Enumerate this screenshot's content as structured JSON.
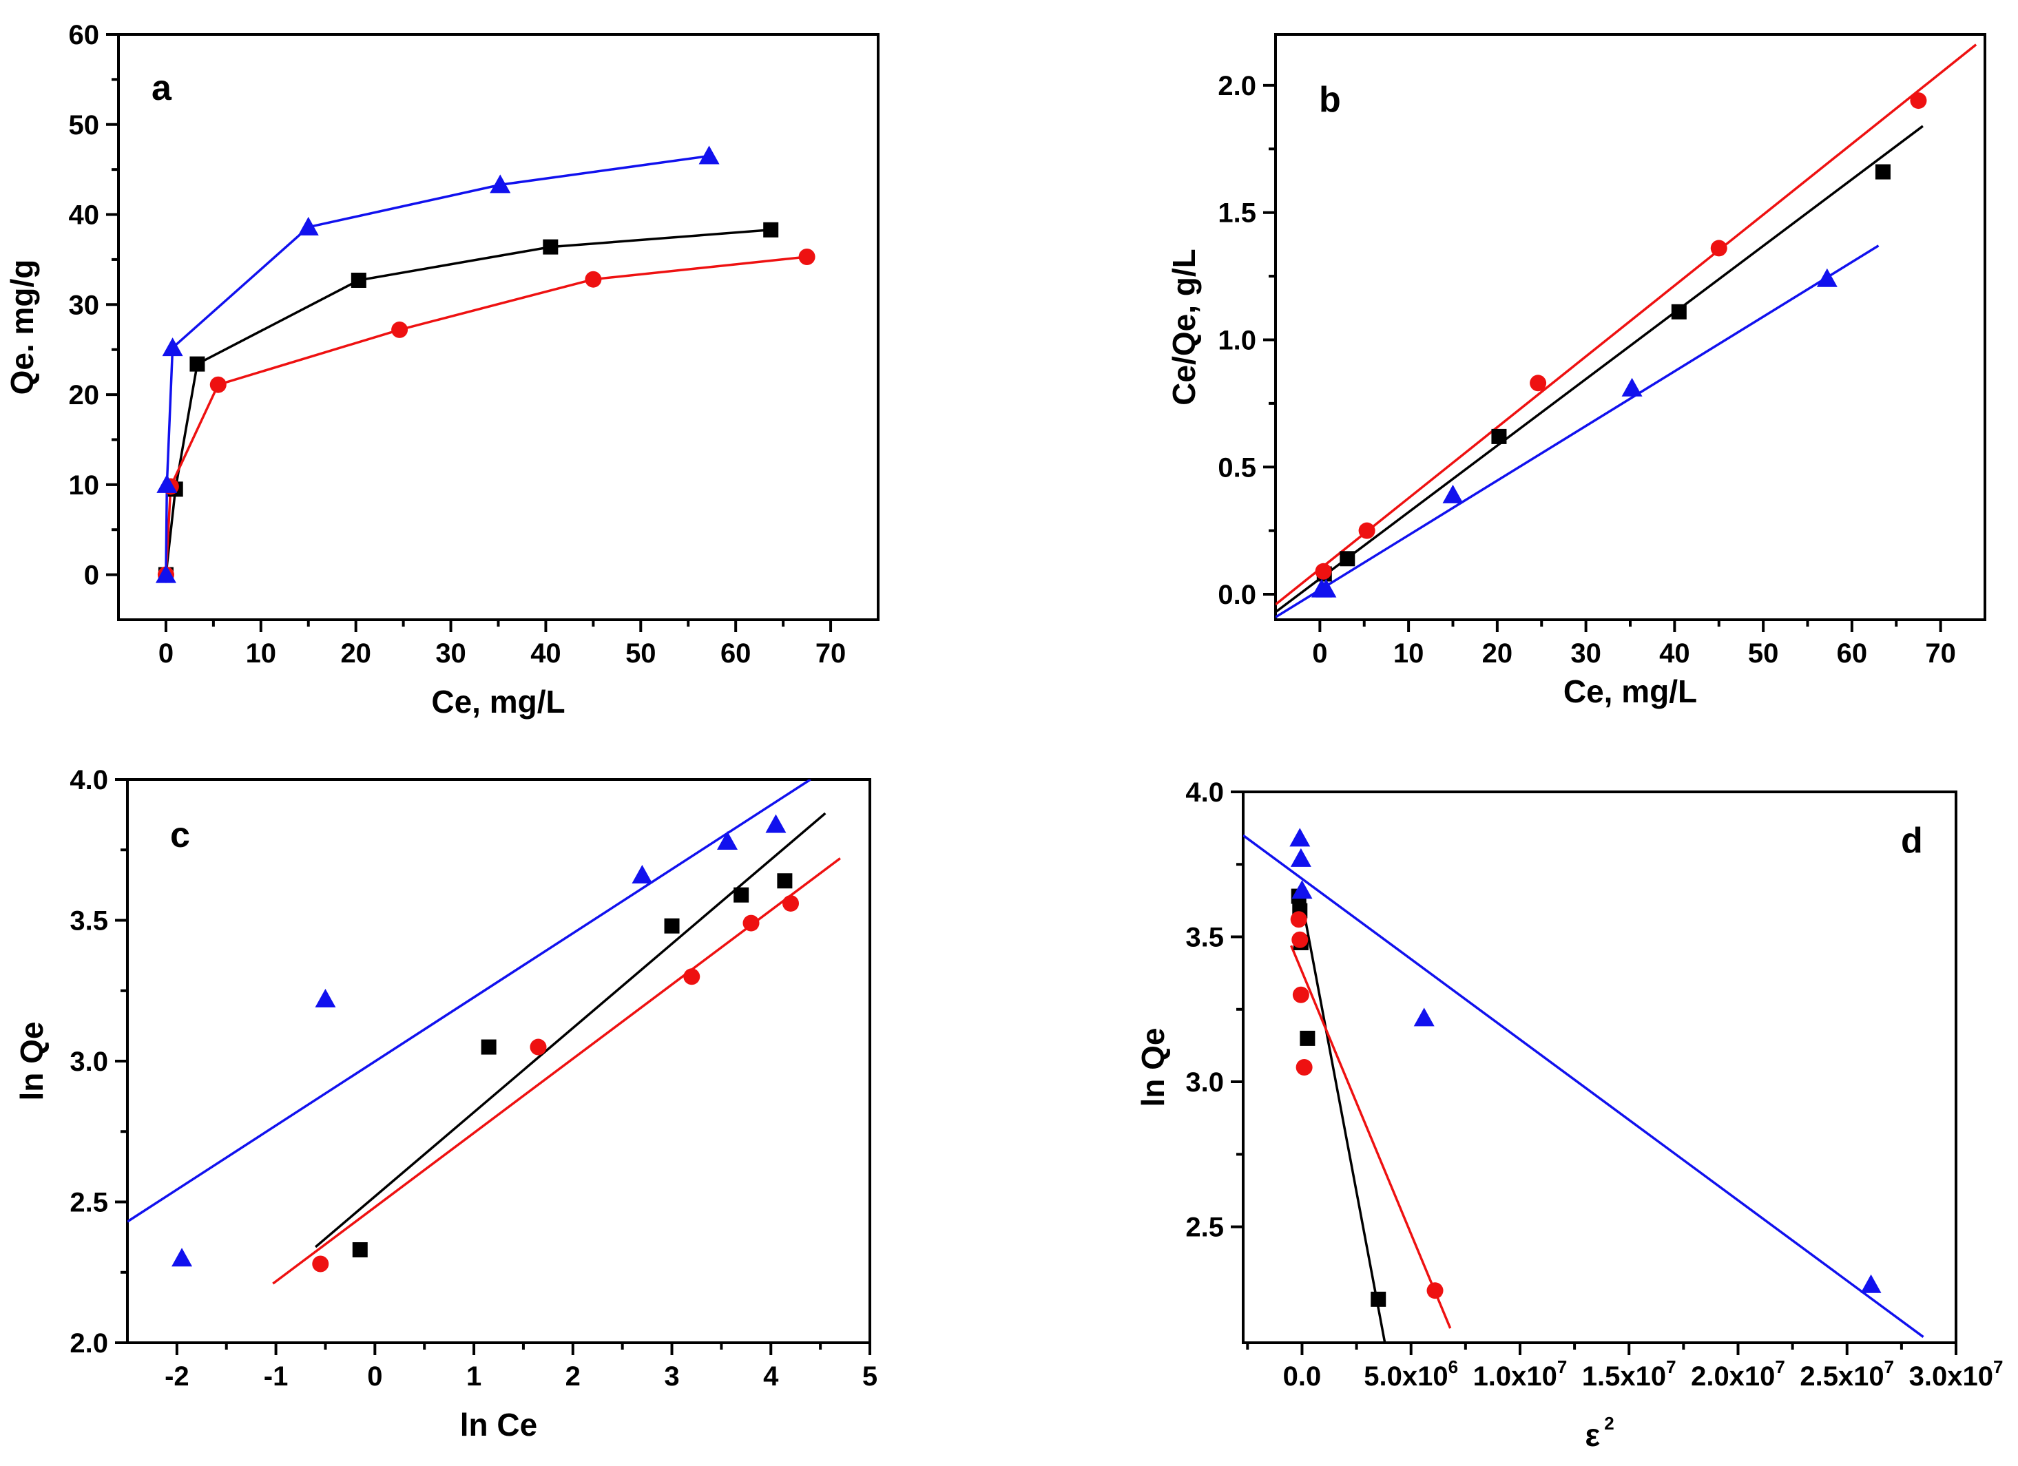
{
  "colors": {
    "black": "#000000",
    "red": "#ee1111",
    "blue": "#1111ee"
  },
  "chart_data": [
    {
      "id": "a",
      "type": "line",
      "panel_label": "a",
      "xlabel": "Ce, mg/L",
      "ylabel": "Qe. mg/g",
      "xlim": [
        -5,
        75
      ],
      "ylim": [
        -5,
        60
      ],
      "xticks": [
        0,
        10,
        20,
        30,
        40,
        50,
        60,
        70
      ],
      "yticks": [
        0,
        10,
        20,
        30,
        40,
        50,
        60
      ],
      "series": [
        {
          "name": "black",
          "marker": "square",
          "color": "#000000",
          "connect": true,
          "x": [
            0,
            1,
            3.3,
            20.3,
            40.5,
            63.7
          ],
          "y": [
            0,
            9.5,
            23.4,
            32.7,
            36.4,
            38.3
          ]
        },
        {
          "name": "red",
          "marker": "circle",
          "color": "#ee1111",
          "connect": true,
          "x": [
            0,
            0.5,
            5.5,
            24.6,
            45,
            67.5
          ],
          "y": [
            0,
            9.8,
            21.1,
            27.2,
            32.8,
            35.3
          ]
        },
        {
          "name": "blue",
          "marker": "triangle",
          "color": "#1111ee",
          "connect": true,
          "x": [
            0,
            0.1,
            0.7,
            15,
            35.2,
            57.2
          ],
          "y": [
            0,
            10,
            25.2,
            38.6,
            43.3,
            46.5
          ]
        }
      ]
    },
    {
      "id": "b",
      "type": "scatter",
      "panel_label": "b",
      "xlabel": "Ce, mg/L",
      "ylabel": "Ce/Qe, g/L",
      "xlim": [
        -5,
        75
      ],
      "ylim": [
        -0.1,
        2.2
      ],
      "xticks": [
        0,
        10,
        20,
        30,
        40,
        50,
        60,
        70
      ],
      "yticks": [
        0.0,
        0.5,
        1.0,
        1.5,
        2.0
      ],
      "ytick_labels": [
        "0.0",
        "0.5",
        "1.0",
        "1.5",
        "2.0"
      ],
      "series": [
        {
          "name": "black",
          "marker": "square",
          "color": "#000000",
          "x": [
            0.5,
            3.1,
            20.2,
            40.5,
            63.5
          ],
          "y": [
            0.08,
            0.14,
            0.62,
            1.11,
            1.66
          ],
          "fit": {
            "x": [
              -5,
              68
            ],
            "y": [
              -0.07,
              1.84
            ]
          }
        },
        {
          "name": "red",
          "marker": "circle",
          "color": "#ee1111",
          "x": [
            0.4,
            5.3,
            24.6,
            45,
            67.5
          ],
          "y": [
            0.09,
            0.25,
            0.83,
            1.36,
            1.94
          ],
          "fit": {
            "x": [
              -5,
              74
            ],
            "y": [
              -0.04,
              2.16
            ]
          }
        },
        {
          "name": "blue",
          "marker": "triangle",
          "color": "#1111ee",
          "x": [
            0.2,
            0.7,
            15,
            35.2,
            57.2
          ],
          "y": [
            0.02,
            0.02,
            0.39,
            0.81,
            1.24
          ],
          "fit": {
            "x": [
              -5,
              63
            ],
            "y": [
              -0.09,
              1.37
            ]
          }
        }
      ]
    },
    {
      "id": "c",
      "type": "scatter",
      "panel_label": "c",
      "xlabel": "ln Ce",
      "ylabel": "ln Qe",
      "xlim": [
        -2.5,
        5
      ],
      "ylim": [
        2.0,
        4.0
      ],
      "xticks": [
        -2,
        -1,
        0,
        1,
        2,
        3,
        4,
        5
      ],
      "yticks": [
        2.0,
        2.5,
        3.0,
        3.5,
        4.0
      ],
      "ytick_labels": [
        "2.0",
        "2.5",
        "3.0",
        "3.5",
        "4.0"
      ],
      "series": [
        {
          "name": "black",
          "marker": "square",
          "color": "#000000",
          "x": [
            -0.15,
            1.15,
            3.0,
            3.7,
            4.14
          ],
          "y": [
            2.33,
            3.05,
            3.48,
            3.59,
            3.64
          ],
          "fit": {
            "x": [
              -0.6,
              4.55
            ],
            "y": [
              2.34,
              3.88
            ]
          }
        },
        {
          "name": "red",
          "marker": "circle",
          "color": "#ee1111",
          "x": [
            -0.55,
            1.65,
            3.2,
            3.8,
            4.2
          ],
          "y": [
            2.28,
            3.05,
            3.3,
            3.49,
            3.56
          ],
          "fit": {
            "x": [
              -1.03,
              4.7
            ],
            "y": [
              2.21,
              3.72
            ]
          }
        },
        {
          "name": "blue",
          "marker": "triangle",
          "color": "#1111ee",
          "x": [
            -1.95,
            -0.5,
            2.7,
            3.56,
            4.05
          ],
          "y": [
            2.3,
            3.22,
            3.66,
            3.78,
            3.84
          ],
          "fit": {
            "x": [
              -2.5,
              4.4
            ],
            "y": [
              2.43,
              4.0
            ]
          }
        }
      ]
    },
    {
      "id": "d",
      "type": "scatter",
      "panel_label": "d",
      "xlabel": "ε",
      "xlabel_sup": "2",
      "ylabel": "ln Qe",
      "xlim": [
        -2700000,
        30000000
      ],
      "ylim": [
        2.1,
        4.0
      ],
      "xticks": [
        0,
        5000000,
        10000000,
        15000000,
        20000000,
        25000000,
        30000000
      ],
      "xtick_labels": [
        {
          "base": "0.0",
          "exp": ""
        },
        {
          "base": "5.0x10",
          "exp": "6"
        },
        {
          "base": "1.0x10",
          "exp": "7"
        },
        {
          "base": "1.5x10",
          "exp": "7"
        },
        {
          "base": "2.0x10",
          "exp": "7"
        },
        {
          "base": "2.5x10",
          "exp": "7"
        },
        {
          "base": "3.0x10",
          "exp": "7"
        }
      ],
      "yticks": [
        2.5,
        3.0,
        3.5,
        4.0
      ],
      "ytick_labels": [
        "2.5",
        "3.0",
        "3.5",
        "4.0"
      ],
      "series": [
        {
          "name": "black",
          "marker": "square",
          "color": "#000000",
          "x": [
            -150000,
            -100000,
            -50000,
            250000,
            3500000
          ],
          "y": [
            3.64,
            3.59,
            3.48,
            3.15,
            2.25
          ],
          "fit": {
            "x": [
              -50000,
              3800000
            ],
            "y": [
              3.64,
              2.1
            ]
          }
        },
        {
          "name": "red",
          "marker": "circle",
          "color": "#ee1111",
          "x": [
            -150000,
            -100000,
            -50000,
            100000,
            6100000
          ],
          "y": [
            3.56,
            3.49,
            3.3,
            3.05,
            2.28
          ],
          "fit": {
            "x": [
              -500000,
              6800000
            ],
            "y": [
              3.47,
              2.15
            ]
          }
        },
        {
          "name": "blue",
          "marker": "triangle",
          "color": "#1111ee",
          "x": [
            -100000,
            -50000,
            0,
            5600000,
            26100000
          ],
          "y": [
            3.84,
            3.77,
            3.66,
            3.22,
            2.3
          ],
          "fit": {
            "x": [
              -2700000,
              28500000
            ],
            "y": [
              3.85,
              2.12
            ]
          }
        }
      ]
    }
  ]
}
